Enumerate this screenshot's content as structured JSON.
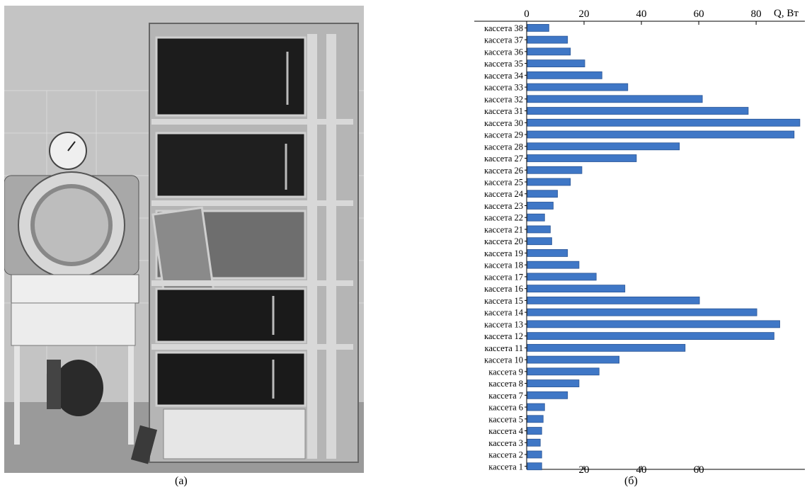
{
  "figure": {
    "caption_left": "(а)",
    "caption_right": "(б)"
  },
  "photo": {
    "description_icon": "dryer-photo",
    "colors": {
      "bg": "#bdbdbd",
      "dark": "#1a1a1a",
      "metal": "#a9a9a9",
      "light": "#e2e2e2"
    }
  },
  "chart_data": {
    "type": "bar",
    "orientation": "horizontal",
    "title": "",
    "xlabel": "Q, Вт",
    "ylabel": "",
    "xlim": [
      0,
      97
    ],
    "x_ticks": [
      0,
      20,
      40,
      60,
      80
    ],
    "x_ticks_bottom": [
      20,
      40,
      60
    ],
    "grid": false,
    "bar_color": "#3f77c6",
    "categories": [
      "кассета 1",
      "кассета 2",
      "кассета 3",
      "кассета 4",
      "кассета 5",
      "кассета 6",
      "кассета 7",
      "кассета 8",
      "кассета 9",
      "кассета 10",
      "кассета 11",
      "кассета 12",
      "кассета 13",
      "кассета 14",
      "кассета 15",
      "кассета 16",
      "кассета 17",
      "кассета 18",
      "кассета 19",
      "кассета 20",
      "кассета 21",
      "кассета 22",
      "кассета 23",
      "кассета 24",
      "кассета 25",
      "кассета 26",
      "кассета 27",
      "кассета 28",
      "кассета 29",
      "кассета 30",
      "кассета 31",
      "кассета 32",
      "кассета 33",
      "кассета 34",
      "кассета 35",
      "кассета 36",
      "кассета 37",
      "кассета 38"
    ],
    "values": [
      5,
      5,
      4.5,
      5,
      5.5,
      6,
      14,
      18,
      25,
      32,
      55,
      86,
      88,
      80,
      60,
      34,
      24,
      18,
      14,
      8.5,
      8,
      6,
      9,
      10.5,
      15,
      19,
      38,
      53,
      93,
      95,
      77,
      61,
      35,
      26,
      20,
      15,
      14,
      7.5
    ]
  }
}
